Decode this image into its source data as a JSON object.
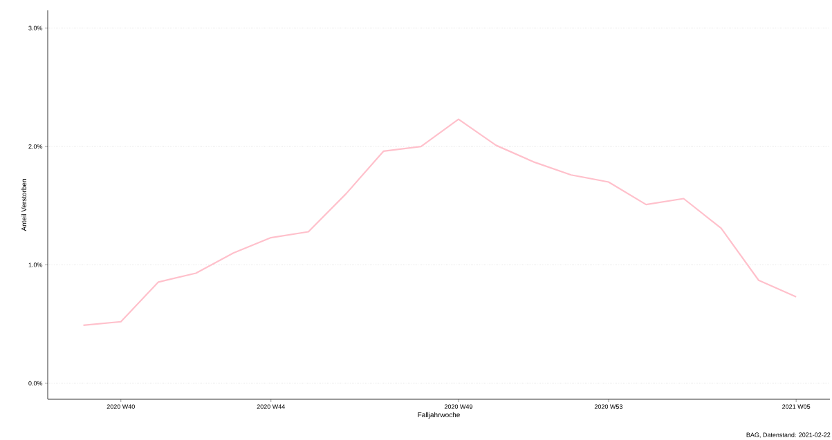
{
  "chart_data": {
    "type": "line",
    "ylabel": "Anteil Verstorben",
    "xlabel": "Falljahrwoche",
    "annotations": [
      "BAG, Datenstand: 2021-02-22"
    ],
    "categories": [
      null,
      "2020 W40",
      null,
      null,
      null,
      "2020 W44",
      null,
      null,
      null,
      null,
      "2020 W49",
      null,
      null,
      null,
      "2020 W53",
      null,
      null,
      null,
      null,
      "2021 W05"
    ],
    "series": [
      {
        "color": "#ffc0cb",
        "values": [
          0.49,
          0.52,
          0.855,
          0.93,
          1.1,
          1.23,
          1.28,
          1.6,
          1.96,
          2.0,
          2.23,
          2.01,
          1.87,
          1.76,
          1.7,
          1.51,
          1.56,
          1.31,
          0.87,
          0.73
        ]
      }
    ],
    "ylim": [
      -0.135,
      3.15
    ],
    "yticks": [
      {
        "value": 0,
        "label": "0.0%"
      },
      {
        "value": 1,
        "label": "1.0%"
      },
      {
        "value": 2,
        "label": "2.0%"
      },
      {
        "value": 3,
        "label": "3.0%"
      }
    ],
    "grid": "y",
    "marker": "none",
    "line_style": "solid"
  }
}
